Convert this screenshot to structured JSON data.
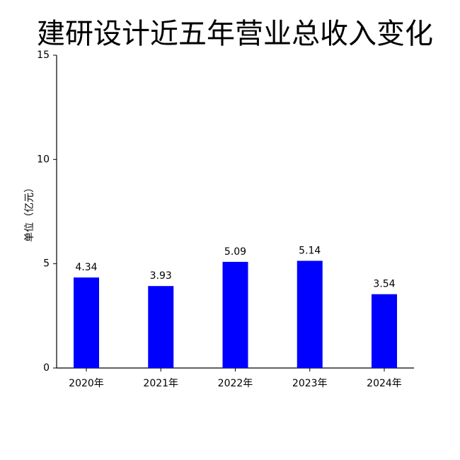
{
  "chart_data": {
    "type": "bar",
    "title": "建研设计近五年营业总收入变化",
    "ylabel": "单位（亿元）",
    "categories": [
      "2020年",
      "2021年",
      "2022年",
      "2023年",
      "2024年"
    ],
    "values": [
      4.34,
      3.93,
      5.09,
      5.14,
      3.54
    ],
    "color": "#0000ff",
    "ylim": [
      0,
      15
    ],
    "yticks": [
      0,
      5,
      10,
      15
    ]
  }
}
